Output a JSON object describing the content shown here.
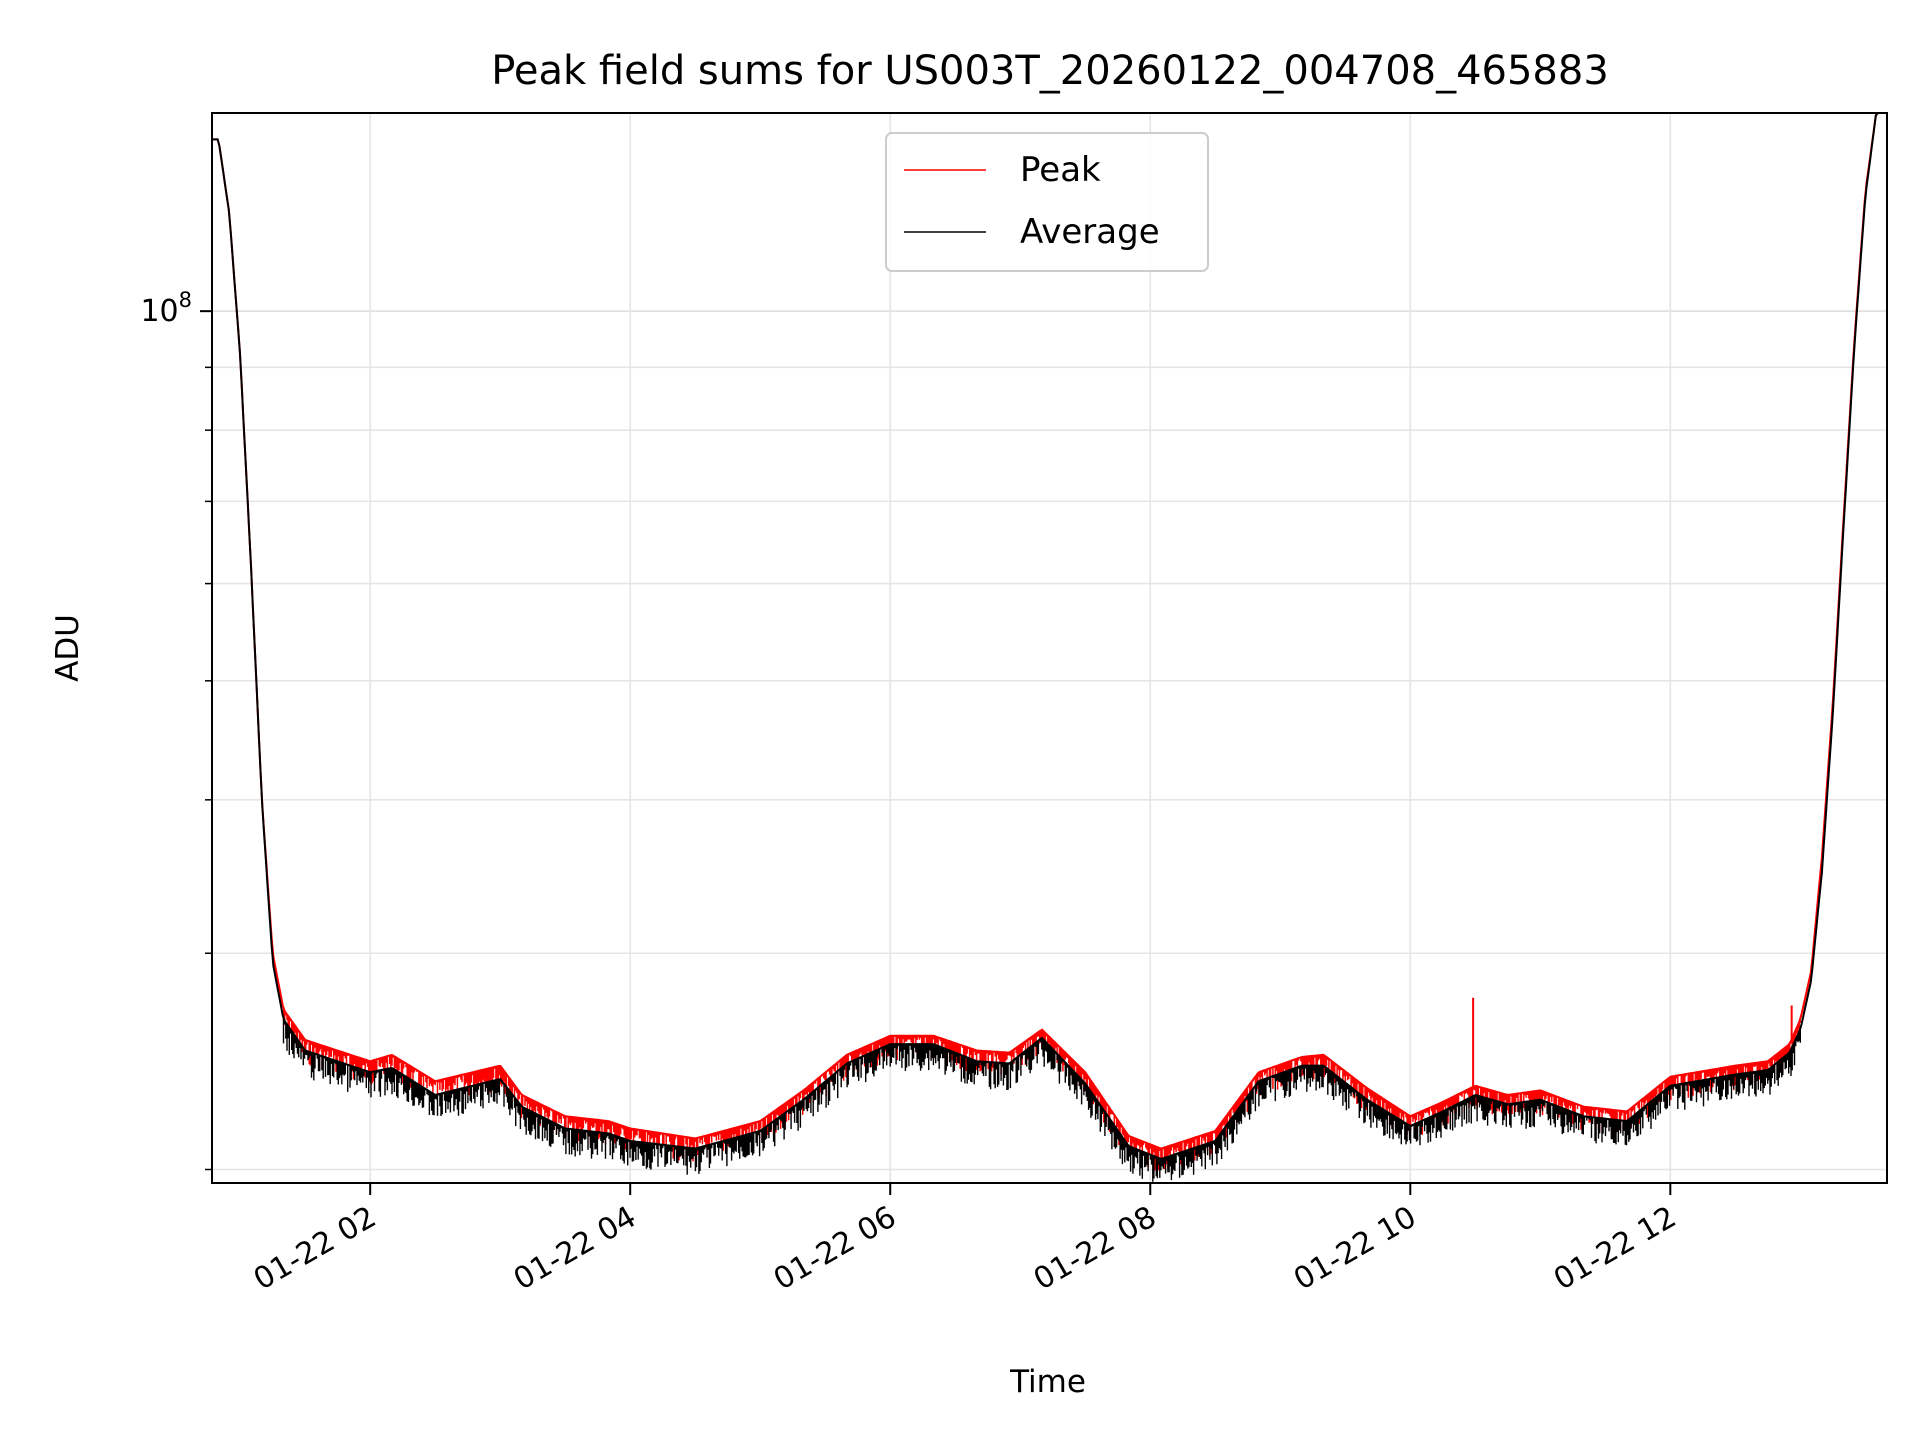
{
  "chart_data": {
    "type": "line",
    "title": "Peak field sums for US003T_20260122_004708_465883",
    "xlabel": "Time",
    "ylabel": "ADU",
    "y_scale": "log",
    "grid": true,
    "legend_position": "top-center",
    "xlim": [
      "2026-01-22 00:47",
      "2026-01-22 13:40"
    ],
    "ylim": [
      19500000,
      145000000
    ],
    "x_ticks": [
      "2026-01-22 02:00",
      "2026-01-22 04:00",
      "2026-01-22 06:00",
      "2026-01-22 08:00",
      "2026-01-22 10:00",
      "2026-01-22 12:00"
    ],
    "x_tick_labels": [
      "01-22 02",
      "01-22 04",
      "01-22 06",
      "01-22 08",
      "01-22 10",
      "01-22 12"
    ],
    "y_tick_label": {
      "base": "10",
      "exponent": "8"
    },
    "series": [
      {
        "name": "Peak",
        "color": "#ff0000",
        "x": [
          "2026-01-22 00:47",
          "2026-01-22 00:50",
          "2026-01-22 00:55",
          "2026-01-22 01:00",
          "2026-01-22 01:05",
          "2026-01-22 01:10",
          "2026-01-22 01:15",
          "2026-01-22 01:20",
          "2026-01-22 01:30",
          "2026-01-22 02:00",
          "2026-01-22 02:10",
          "2026-01-22 02:30",
          "2026-01-22 03:00",
          "2026-01-22 03:10",
          "2026-01-22 03:30",
          "2026-01-22 03:50",
          "2026-01-22 04:00",
          "2026-01-22 04:30",
          "2026-01-22 05:00",
          "2026-01-22 05:20",
          "2026-01-22 05:40",
          "2026-01-22 06:00",
          "2026-01-22 06:20",
          "2026-01-22 06:40",
          "2026-01-22 06:55",
          "2026-01-22 07:10",
          "2026-01-22 07:30",
          "2026-01-22 07:50",
          "2026-01-22 08:05",
          "2026-01-22 08:30",
          "2026-01-22 08:50",
          "2026-01-22 09:10",
          "2026-01-22 09:20",
          "2026-01-22 09:40",
          "2026-01-22 10:00",
          "2026-01-22 10:15",
          "2026-01-22 10:30",
          "2026-01-22 10:45",
          "2026-01-22 11:00",
          "2026-01-22 11:20",
          "2026-01-22 11:40",
          "2026-01-22 12:00",
          "2026-01-22 12:30",
          "2026-01-22 12:45",
          "2026-01-22 12:55",
          "2026-01-22 13:00",
          "2026-01-22 13:05",
          "2026-01-22 13:10",
          "2026-01-22 13:15",
          "2026-01-22 13:20",
          "2026-01-22 13:25",
          "2026-01-22 13:30",
          "2026-01-22 13:35",
          "2026-01-22 13:40"
        ],
        "y": [
          138000000,
          138000000,
          120000000,
          92000000,
          62000000,
          40000000,
          30000000,
          27000000,
          25500000,
          24500000,
          24800000,
          23600000,
          24300000,
          23000000,
          22100000,
          21900000,
          21600000,
          21200000,
          21900000,
          23200000,
          24800000,
          25700000,
          25700000,
          25000000,
          24900000,
          26000000,
          24000000,
          21300000,
          20800000,
          21500000,
          24000000,
          24700000,
          24800000,
          23300000,
          22100000,
          22700000,
          23400000,
          23000000,
          23200000,
          22500000,
          22300000,
          23800000,
          24300000,
          24500000,
          25300000,
          26500000,
          29000000,
          36000000,
          48000000,
          68000000,
          95000000,
          125000000,
          145000000,
          145000000
        ],
        "annotations": [
          {
            "type": "spike",
            "x": "2026-01-22 10:29",
            "y": 27600000
          },
          {
            "type": "spike",
            "x": "2026-01-22 12:56",
            "y": 27200000
          }
        ]
      },
      {
        "name": "Average",
        "color": "#000000",
        "x": [
          "2026-01-22 00:47",
          "2026-01-22 00:50",
          "2026-01-22 00:55",
          "2026-01-22 01:00",
          "2026-01-22 01:05",
          "2026-01-22 01:10",
          "2026-01-22 01:15",
          "2026-01-22 01:20",
          "2026-01-22 01:30",
          "2026-01-22 02:00",
          "2026-01-22 02:10",
          "2026-01-22 02:30",
          "2026-01-22 03:00",
          "2026-01-22 03:10",
          "2026-01-22 03:30",
          "2026-01-22 03:50",
          "2026-01-22 04:00",
          "2026-01-22 04:30",
          "2026-01-22 05:00",
          "2026-01-22 05:20",
          "2026-01-22 05:40",
          "2026-01-22 06:00",
          "2026-01-22 06:20",
          "2026-01-22 06:40",
          "2026-01-22 06:55",
          "2026-01-22 07:10",
          "2026-01-22 07:30",
          "2026-01-22 07:50",
          "2026-01-22 08:05",
          "2026-01-22 08:30",
          "2026-01-22 08:50",
          "2026-01-22 09:10",
          "2026-01-22 09:20",
          "2026-01-22 09:40",
          "2026-01-22 10:00",
          "2026-01-22 10:15",
          "2026-01-22 10:30",
          "2026-01-22 10:45",
          "2026-01-22 11:00",
          "2026-01-22 11:20",
          "2026-01-22 11:40",
          "2026-01-22 12:00",
          "2026-01-22 12:30",
          "2026-01-22 12:45",
          "2026-01-22 12:55",
          "2026-01-22 13:00",
          "2026-01-22 13:05",
          "2026-01-22 13:10",
          "2026-01-22 13:15",
          "2026-01-22 13:20",
          "2026-01-22 13:25",
          "2026-01-22 13:30",
          "2026-01-22 13:35",
          "2026-01-22 13:40"
        ],
        "y": [
          138000000,
          138000000,
          120000000,
          92000000,
          62000000,
          40000000,
          29500000,
          26500000,
          25000000,
          24000000,
          24200000,
          23000000,
          23700000,
          22500000,
          21600000,
          21400000,
          21100000,
          20800000,
          21500000,
          22800000,
          24400000,
          25300000,
          25300000,
          24500000,
          24400000,
          25600000,
          23500000,
          20900000,
          20400000,
          21100000,
          23600000,
          24300000,
          24300000,
          22800000,
          21700000,
          22300000,
          23000000,
          22600000,
          22800000,
          22100000,
          21900000,
          23400000,
          23900000,
          24100000,
          24900000,
          26000000,
          28500000,
          35000000,
          47000000,
          67000000,
          94000000,
          124000000,
          145000000,
          145000000
        ]
      }
    ]
  }
}
